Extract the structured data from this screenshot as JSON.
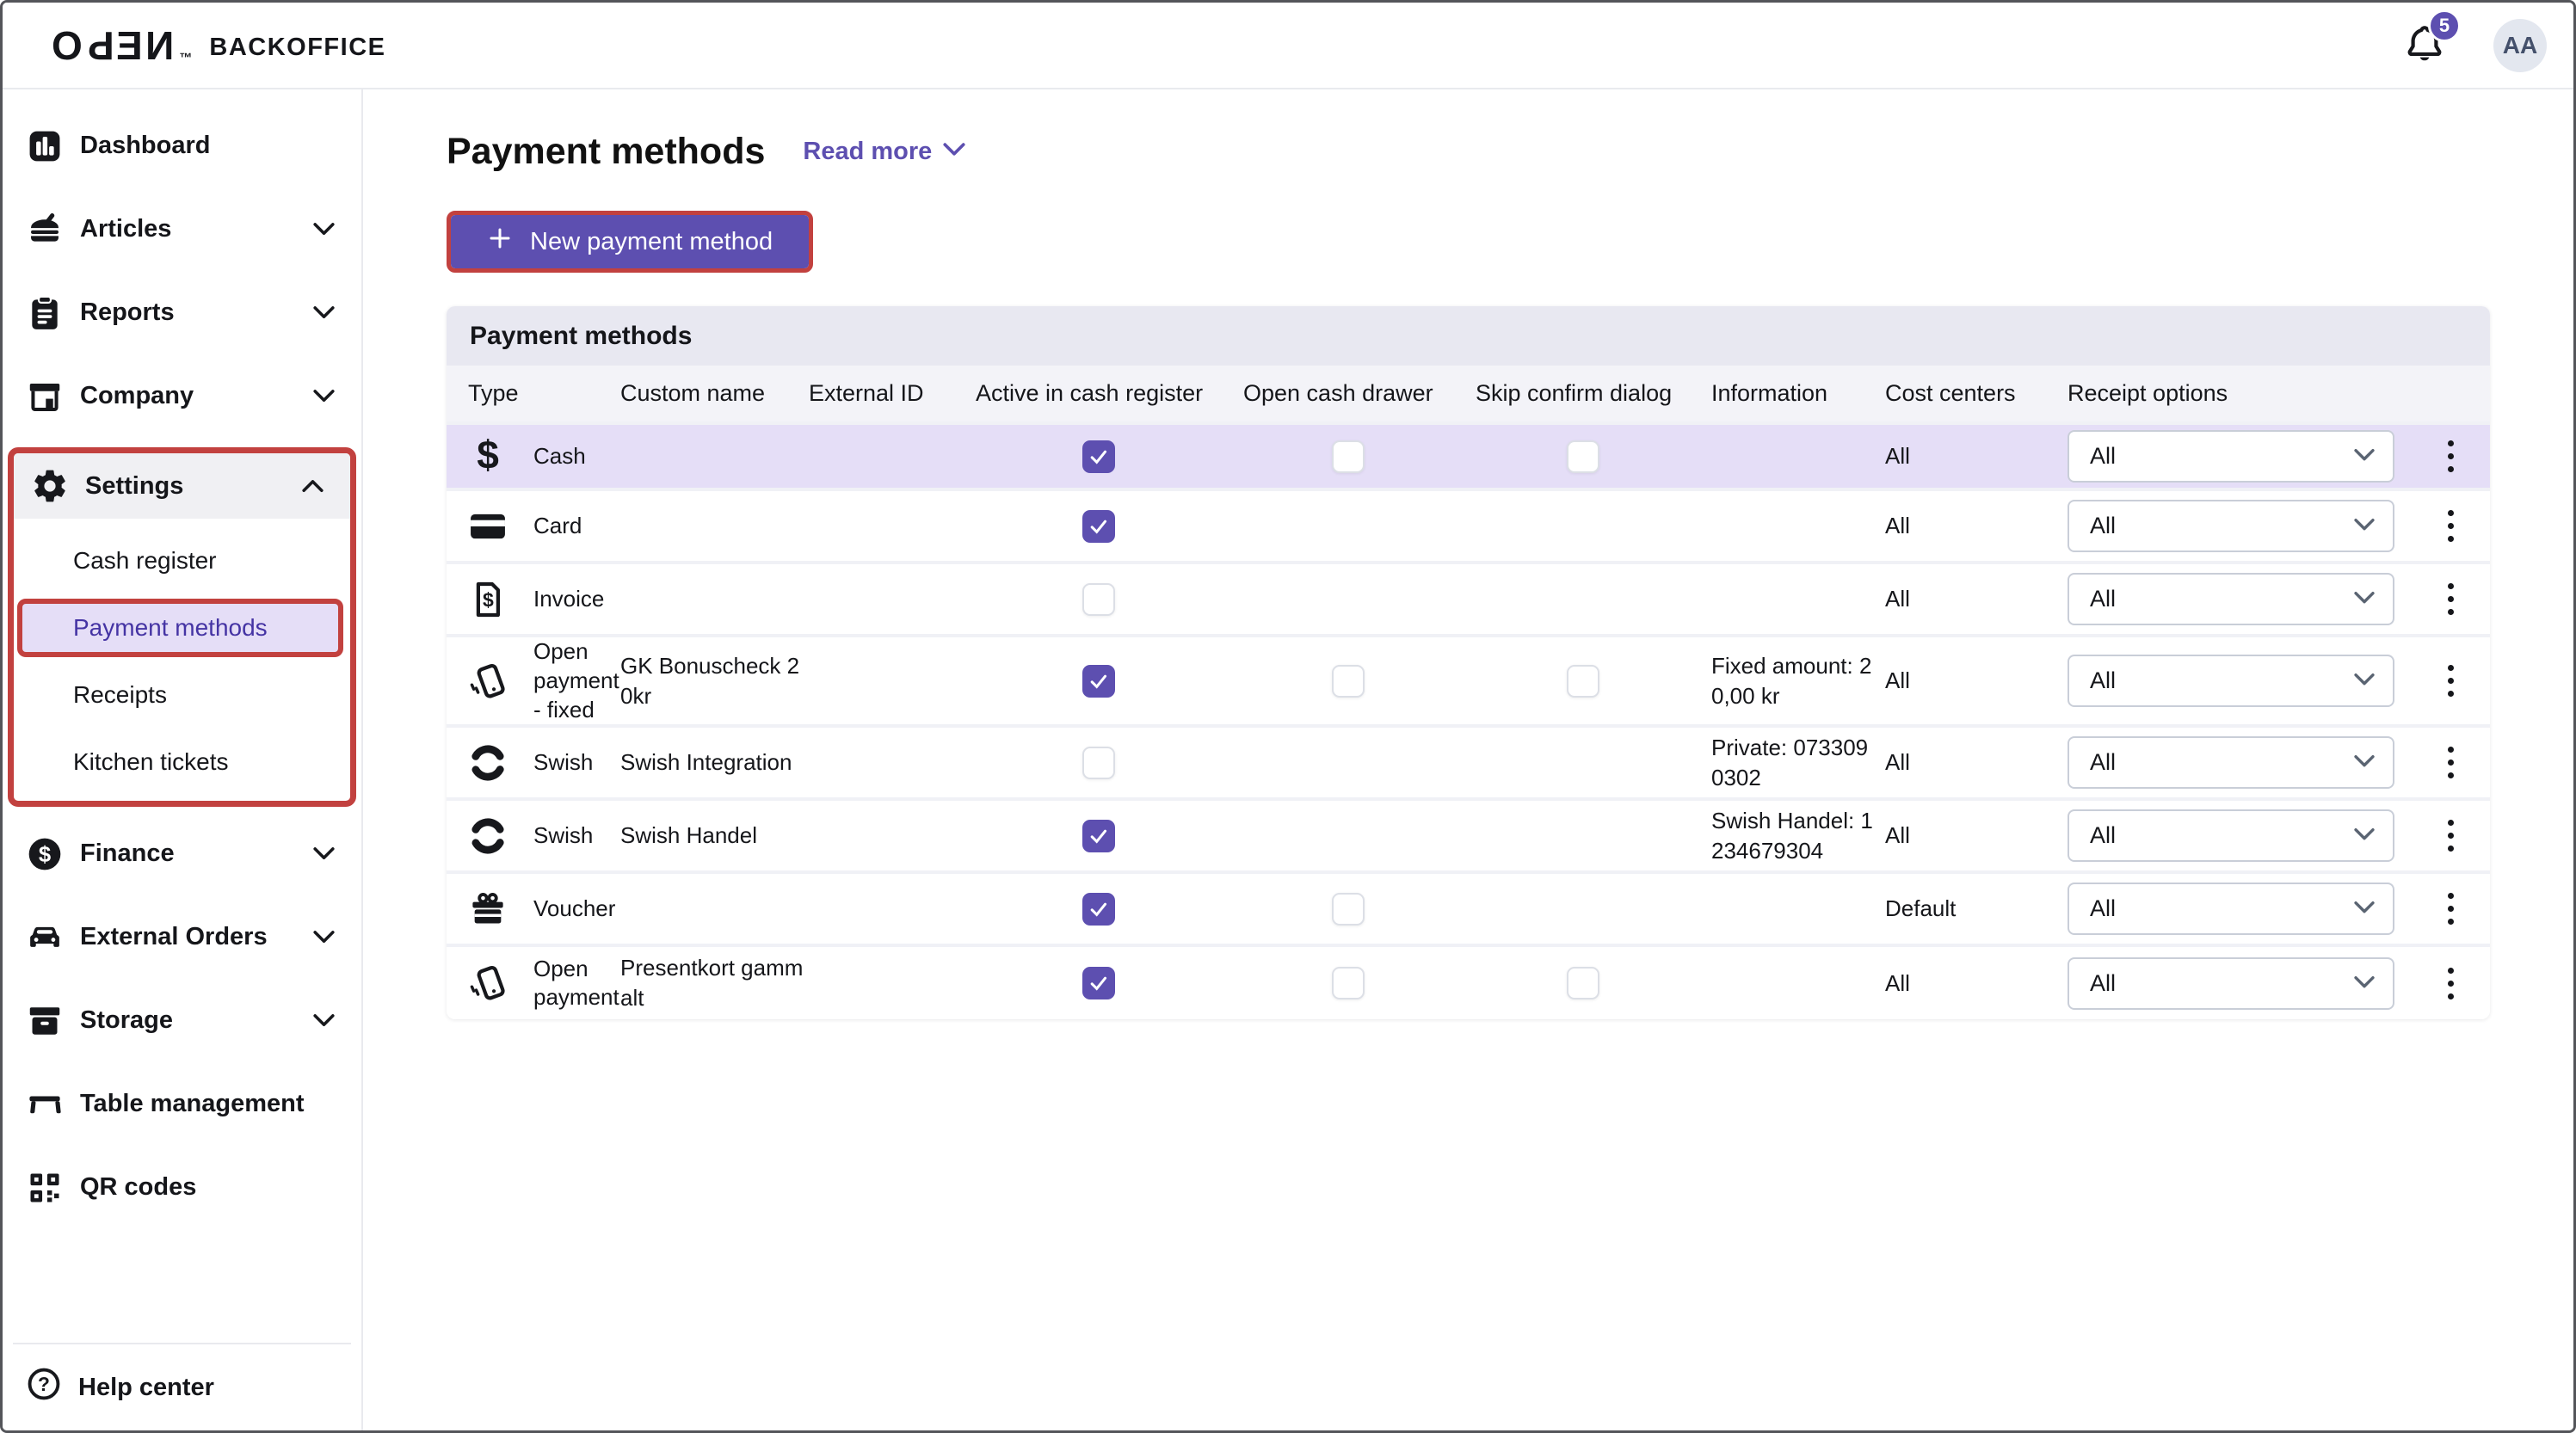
{
  "colors": {
    "accent": "#5D4FB0",
    "highlight": "#E5DEF7",
    "annotation": "#C2413F",
    "selected_text": "#4534A4"
  },
  "topbar": {
    "logo_word": "OPEN",
    "logo_tm": "™",
    "logo_suffix": "BACKOFFICE",
    "notification_count": "5",
    "avatar_initials": "AA"
  },
  "sidebar": {
    "items": [
      {
        "id": "dashboard",
        "label": "Dashboard",
        "icon": "dashboard-icon",
        "chevron": null
      },
      {
        "id": "articles",
        "label": "Articles",
        "icon": "articles-icon",
        "chevron": "down"
      },
      {
        "id": "reports",
        "label": "Reports",
        "icon": "reports-icon",
        "chevron": "down"
      },
      {
        "id": "company",
        "label": "Company",
        "icon": "company-icon",
        "chevron": "down"
      },
      {
        "id": "settings",
        "label": "Settings",
        "icon": "settings-icon",
        "chevron": "up",
        "annotated": true,
        "children": [
          {
            "id": "cash-register",
            "label": "Cash register",
            "selected": false
          },
          {
            "id": "payment-methods",
            "label": "Payment methods",
            "selected": true,
            "annotated": true
          },
          {
            "id": "receipts",
            "label": "Receipts",
            "selected": false
          },
          {
            "id": "kitchen-tickets",
            "label": "Kitchen tickets",
            "selected": false
          }
        ]
      },
      {
        "id": "finance",
        "label": "Finance",
        "icon": "finance-icon",
        "chevron": "down"
      },
      {
        "id": "external-orders",
        "label": "External Orders",
        "icon": "external-orders-icon",
        "chevron": "down"
      },
      {
        "id": "storage",
        "label": "Storage",
        "icon": "storage-icon",
        "chevron": "down"
      },
      {
        "id": "table-management",
        "label": "Table management",
        "icon": "table-icon",
        "chevron": null
      },
      {
        "id": "qr-codes",
        "label": "QR codes",
        "icon": "qr-icon",
        "chevron": null
      }
    ],
    "footer": {
      "label": "Help center",
      "icon": "help-icon"
    }
  },
  "page": {
    "title": "Payment methods",
    "read_more": "Read more",
    "new_button": "New payment method"
  },
  "table": {
    "card_title": "Payment methods",
    "columns": [
      "Type",
      "Custom name",
      "External ID",
      "Active in cash register",
      "Open cash drawer",
      "Skip confirm dialog",
      "Information",
      "Cost centers",
      "Receipt options"
    ],
    "rows": [
      {
        "type": "Cash",
        "icon": "cash-icon",
        "custom_name": "",
        "external_id": "",
        "active": true,
        "open_drawer": false,
        "skip_confirm": false,
        "information": "",
        "cost_centers": "All",
        "receipt_options": "All",
        "highlighted": true
      },
      {
        "type": "Card",
        "icon": "card-icon",
        "custom_name": "",
        "external_id": "",
        "active": true,
        "open_drawer": null,
        "skip_confirm": null,
        "information": "",
        "cost_centers": "All",
        "receipt_options": "All",
        "highlighted": false
      },
      {
        "type": "Invoice",
        "icon": "invoice-icon",
        "custom_name": "",
        "external_id": "",
        "active": false,
        "open_drawer": null,
        "skip_confirm": null,
        "information": "",
        "cost_centers": "All",
        "receipt_options": "All",
        "highlighted": false
      },
      {
        "type": "Open payment - fixed",
        "icon": "open-payment-icon",
        "custom_name": "GK Bonuscheck 20kr",
        "external_id": "",
        "active": true,
        "open_drawer": false,
        "skip_confirm": false,
        "information": "Fixed amount: 20,00 kr",
        "cost_centers": "All",
        "receipt_options": "All",
        "highlighted": false
      },
      {
        "type": "Swish",
        "icon": "swish-icon",
        "custom_name": "Swish Integration",
        "external_id": "",
        "active": false,
        "open_drawer": null,
        "skip_confirm": null,
        "information": "Private: 0733090302",
        "cost_centers": "All",
        "receipt_options": "All",
        "highlighted": false
      },
      {
        "type": "Swish",
        "icon": "swish-icon",
        "custom_name": "Swish Handel",
        "external_id": "",
        "active": true,
        "open_drawer": null,
        "skip_confirm": null,
        "information": "Swish Handel: 1234679304",
        "cost_centers": "All",
        "receipt_options": "All",
        "highlighted": false
      },
      {
        "type": "Voucher",
        "icon": "voucher-icon",
        "custom_name": "",
        "external_id": "",
        "active": true,
        "open_drawer": false,
        "skip_confirm": null,
        "information": "",
        "cost_centers": "Default",
        "receipt_options": "All",
        "highlighted": false
      },
      {
        "type": "Open payment",
        "icon": "open-payment-icon",
        "custom_name": "Presentkort gammalt",
        "external_id": "",
        "active": true,
        "open_drawer": false,
        "skip_confirm": false,
        "information": "",
        "cost_centers": "All",
        "receipt_options": "All",
        "highlighted": false
      }
    ]
  }
}
